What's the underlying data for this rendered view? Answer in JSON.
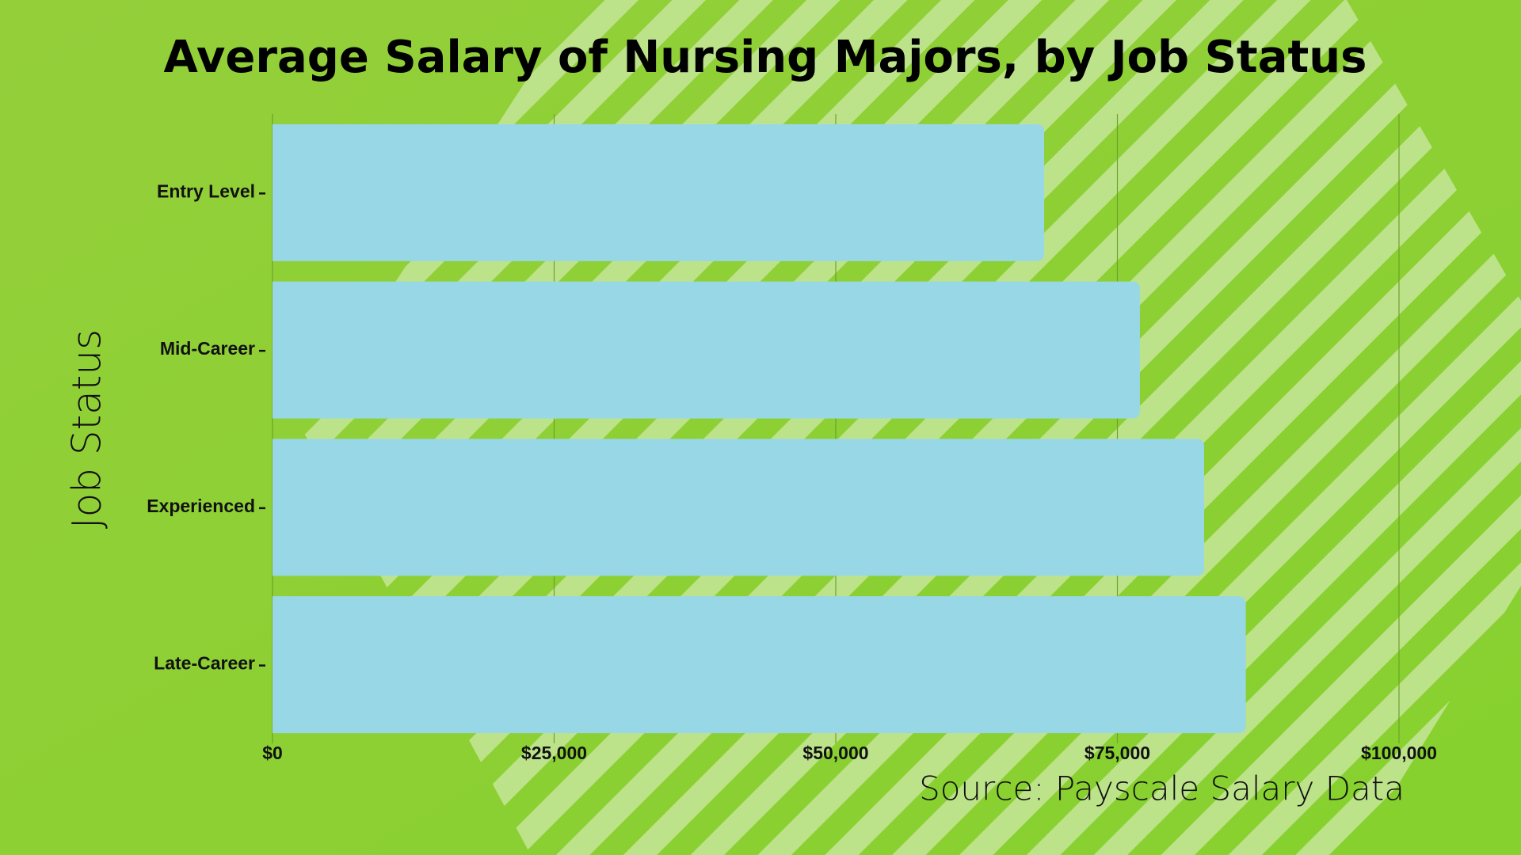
{
  "chart_data": {
    "type": "bar",
    "orientation": "horizontal",
    "title": "Average Salary of Nursing Majors, by Job Status",
    "y_label": "Job Status",
    "source": "Source: Payscale Salary Data",
    "categories": [
      "Entry Level",
      "Mid-Career",
      "Experienced",
      "Late-Career"
    ],
    "values": [
      68500,
      77000,
      82700,
      86400
    ],
    "color": "#98d7e6",
    "xlim": [
      0,
      100000
    ],
    "xticks": [
      {
        "value": 0,
        "label": "$0"
      },
      {
        "value": 25000,
        "label": "$25,000"
      },
      {
        "value": 50000,
        "label": "$50,000"
      },
      {
        "value": 75000,
        "label": "$75,000"
      },
      {
        "value": 100000,
        "label": "$100,000"
      }
    ],
    "grid": true
  }
}
